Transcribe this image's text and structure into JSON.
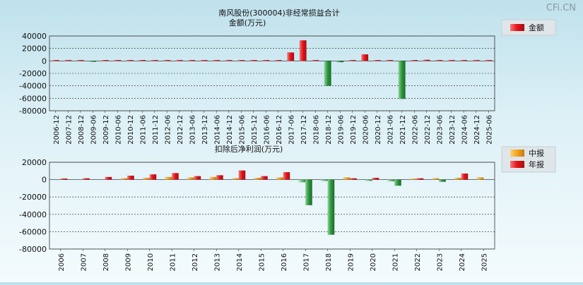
{
  "watermark": "CFi.CN",
  "colors": {
    "red": "#e8151b",
    "green": "#2f9b3f",
    "orange": "#f5a623"
  },
  "chart_data": [
    {
      "type": "bar",
      "title": "南风股份(300004)非经常损益合计",
      "subtitle": "金额(万元)",
      "legend": [
        {
          "name": "金额",
          "color": "#e8151b"
        }
      ],
      "legend_placement": "top-right",
      "ylim": [
        -80000,
        40000
      ],
      "yticks": [
        40000,
        20000,
        0,
        -20000,
        -40000,
        -60000,
        -80000
      ],
      "grid": true,
      "categories": [
        "2006-12",
        "2007-12",
        "2008-12",
        "2009-06",
        "2009-12",
        "2010-06",
        "2010-12",
        "2011-06",
        "2011-12",
        "2012-06",
        "2012-12",
        "2013-06",
        "2013-12",
        "2014-06",
        "2014-12",
        "2015-06",
        "2015-12",
        "2016-06",
        "2016-12",
        "2017-06",
        "2017-12",
        "2018-06",
        "2018-12",
        "2019-06",
        "2019-12",
        "2020-06",
        "2020-12",
        "2021-06",
        "2021-12",
        "2022-06",
        "2022-12",
        "2023-06",
        "2023-12",
        "2024-06",
        "2024-12",
        "2025-06"
      ],
      "series": [
        {
          "name": "金额",
          "values": [
            300,
            400,
            500,
            -300,
            400,
            300,
            500,
            300,
            600,
            300,
            400,
            300,
            500,
            300,
            600,
            400,
            500,
            300,
            800,
            13500,
            33000,
            500,
            -40000,
            -2000,
            800,
            10500,
            300,
            200,
            -61000,
            300,
            1800,
            300,
            600,
            400,
            500,
            700
          ]
        }
      ]
    },
    {
      "type": "bar",
      "title": "扣除后净利润(万元)",
      "legend": [
        {
          "name": "中报",
          "color": "#f5a623"
        },
        {
          "name": "年报",
          "color": "#e8151b"
        }
      ],
      "legend_placement": "top-right",
      "ylim": [
        -80000,
        20000
      ],
      "yticks": [
        20000,
        0,
        -20000,
        -40000,
        -60000,
        -80000
      ],
      "grid": true,
      "categories": [
        "2006",
        "2007",
        "2008",
        "2009",
        "2010",
        "2011",
        "2012",
        "2013",
        "2014",
        "2015",
        "2016",
        "2017",
        "2018",
        "2019",
        "2020",
        "2021",
        "2022",
        "2023",
        "2024",
        "2025"
      ],
      "series": [
        {
          "name": "中报",
          "values": [
            null,
            null,
            null,
            1500,
            2000,
            3000,
            2500,
            3000,
            1500,
            2000,
            2500,
            -3000,
            -1500,
            2500,
            -1500,
            -2000,
            500,
            1500,
            2000,
            2500
          ]
        },
        {
          "name": "年报",
          "values": [
            1200,
            1500,
            3000,
            4500,
            6000,
            7500,
            4000,
            5000,
            10500,
            4000,
            8500,
            -29500,
            -63500,
            1500,
            2000,
            -7000,
            1500,
            -2500,
            7000,
            null
          ]
        }
      ]
    }
  ]
}
